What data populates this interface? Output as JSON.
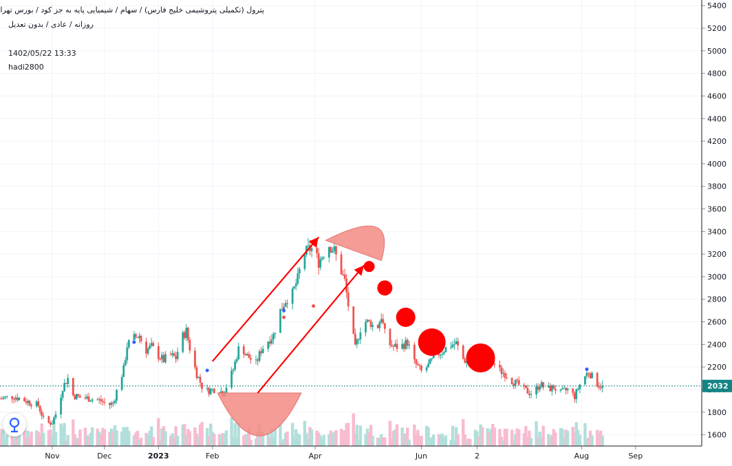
{
  "header": {
    "title": "پترول (تکمیلی پتروشیمی خلیج فارس) / سهام / شیمیایی پایه به جز کود / بورس تهران",
    "subtitle": "روزانه / عادی / بدون تعدیل",
    "datetime": "1402/05/22 13:33",
    "author": "hadi2800"
  },
  "colors": {
    "up": "#26a69a",
    "down": "#ef5350",
    "volume_up": "#b2dfdb",
    "volume_down": "#f8bbd0",
    "drawing": "#ff0000",
    "shape_fill": "#f28b82",
    "price_line": "#138484"
  },
  "chart_data": {
    "type": "candlestick",
    "title": "",
    "xlabel": "",
    "ylabel": "",
    "ylim": [
      1500,
      5450
    ],
    "y_ticks": [
      1600,
      1800,
      2000,
      2200,
      2400,
      2600,
      2800,
      3000,
      3200,
      3400,
      3600,
      3800,
      4000,
      4200,
      4400,
      4600,
      4800,
      5000,
      5200,
      5400
    ],
    "x_ticks": [
      {
        "day": 0,
        "label": "Nov"
      },
      {
        "day": 30,
        "label": "Dec"
      },
      {
        "day": 61,
        "label": "2023"
      },
      {
        "day": 92,
        "label": "Feb"
      },
      {
        "day": 151,
        "label": "Apr"
      },
      {
        "day": 212,
        "label": "Jun"
      },
      {
        "day": 244,
        "label": "2"
      },
      {
        "day": 304,
        "label": "Aug"
      },
      {
        "day": 335,
        "label": "Sep"
      }
    ],
    "x_range_days": [
      -30,
      373
    ],
    "last_price": 2032,
    "grid": true,
    "price_path": [
      [
        -30,
        1920
      ],
      [
        -22,
        1940
      ],
      [
        -15,
        1900
      ],
      [
        -8,
        1860
      ],
      [
        -4,
        1700
      ],
      [
        0,
        1710
      ],
      [
        3,
        1820
      ],
      [
        6,
        2020
      ],
      [
        9,
        2100
      ],
      [
        12,
        1950
      ],
      [
        16,
        1930
      ],
      [
        22,
        1920
      ],
      [
        28,
        1900
      ],
      [
        32,
        1860
      ],
      [
        35,
        1880
      ],
      [
        38,
        2040
      ],
      [
        41,
        2180
      ],
      [
        43,
        2390
      ],
      [
        46,
        2450
      ],
      [
        50,
        2480
      ],
      [
        53,
        2340
      ],
      [
        57,
        2380
      ],
      [
        61,
        2300
      ],
      [
        64,
        2260
      ],
      [
        67,
        2310
      ],
      [
        71,
        2280
      ],
      [
        74,
        2450
      ],
      [
        77,
        2520
      ],
      [
        80,
        2290
      ],
      [
        83,
        2140
      ],
      [
        86,
        2030
      ],
      [
        89,
        1990
      ],
      [
        92,
        2000
      ],
      [
        95,
        2010
      ],
      [
        98,
        1970
      ],
      [
        101,
        2060
      ],
      [
        104,
        2180
      ],
      [
        108,
        2420
      ],
      [
        111,
        2310
      ],
      [
        114,
        2270
      ],
      [
        117,
        2230
      ],
      [
        120,
        2350
      ],
      [
        123,
        2420
      ],
      [
        127,
        2480
      ],
      [
        131,
        2700
      ],
      [
        134,
        2790
      ],
      [
        138,
        2850
      ],
      [
        141,
        2980
      ],
      [
        144,
        3190
      ],
      [
        147,
        3240
      ],
      [
        150,
        3250
      ],
      [
        153,
        3130
      ],
      [
        156,
        3210
      ],
      [
        159,
        3280
      ],
      [
        162,
        3230
      ],
      [
        165,
        3090
      ],
      [
        168,
        2960
      ],
      [
        171,
        2640
      ],
      [
        174,
        2360
      ],
      [
        177,
        2540
      ],
      [
        180,
        2600
      ],
      [
        183,
        2590
      ],
      [
        186,
        2520
      ],
      [
        189,
        2650
      ],
      [
        192,
        2420
      ],
      [
        196,
        2380
      ],
      [
        200,
        2380
      ],
      [
        204,
        2420
      ],
      [
        208,
        2240
      ],
      [
        212,
        2160
      ],
      [
        216,
        2210
      ],
      [
        220,
        2300
      ],
      [
        224,
        2340
      ],
      [
        228,
        2390
      ],
      [
        232,
        2410
      ],
      [
        236,
        2270
      ],
      [
        240,
        2230
      ],
      [
        244,
        2260
      ],
      [
        248,
        2290
      ],
      [
        252,
        2260
      ],
      [
        256,
        2180
      ],
      [
        260,
        2140
      ],
      [
        264,
        2080
      ],
      [
        268,
        2040
      ],
      [
        272,
        1990
      ],
      [
        276,
        1960
      ],
      [
        280,
        2050
      ],
      [
        284,
        2000
      ],
      [
        288,
        2020
      ],
      [
        292,
        1970
      ],
      [
        296,
        2000
      ],
      [
        300,
        1940
      ],
      [
        304,
        2080
      ],
      [
        308,
        2160
      ],
      [
        311,
        2090
      ],
      [
        314,
        2040
      ],
      [
        316,
        2032
      ]
    ],
    "annotations": {
      "arrows": [
        {
          "from": [
            92,
            2250
          ],
          "to": [
            153,
            3350
          ]
        },
        {
          "from": [
            118,
            1970
          ],
          "to": [
            179,
            3100
          ]
        }
      ],
      "bowl": {
        "center": [
          119,
          1970
        ],
        "radius_days": 24,
        "depth": 380
      },
      "half_disc": {
        "center": [
          173,
          3290
        ],
        "radius_price": 210,
        "width_days": 32
      },
      "dots": [
        {
          "day": 182,
          "price": 3090,
          "r": 8
        },
        {
          "day": 191,
          "price": 2900,
          "r": 11
        },
        {
          "day": 203,
          "price": 2640,
          "r": 14
        },
        {
          "day": 218,
          "price": 2420,
          "r": 20
        },
        {
          "day": 246,
          "price": 2280,
          "r": 21
        }
      ]
    }
  }
}
